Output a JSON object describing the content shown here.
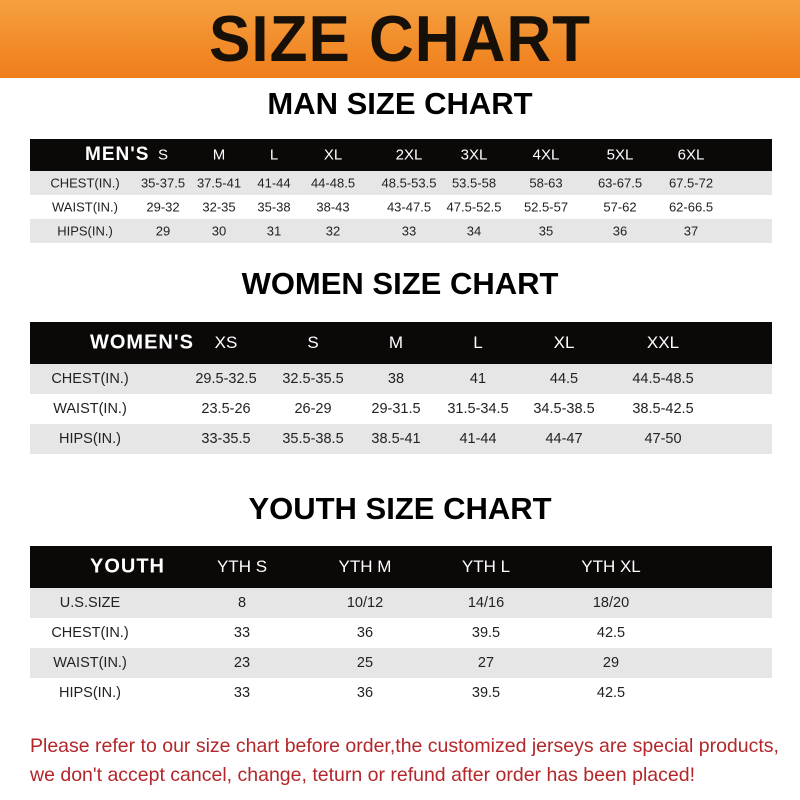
{
  "banner": {
    "title": "SIZE CHART",
    "color": "#ef8a24"
  },
  "men": {
    "title": "MAN SIZE CHART",
    "header": [
      "MEN'S",
      "S",
      "M",
      "L",
      "XL",
      "2XL",
      "3XL",
      "4XL",
      "5XL",
      "6XL"
    ],
    "rows": [
      [
        "CHEST(IN.)",
        "35-37.5",
        "37.5-41",
        "41-44",
        "44-48.5",
        "48.5-53.5",
        "53.5-58",
        "58-63",
        "63-67.5",
        "67.5-72"
      ],
      [
        "WAIST(IN.)",
        "29-32",
        "32-35",
        "35-38",
        "38-43",
        "43-47.5",
        "47.5-52.5",
        "52.5-57",
        "57-62",
        "62-66.5"
      ],
      [
        "HIPS(IN.)",
        "29",
        "30",
        "31",
        "32",
        "33",
        "34",
        "35",
        "36",
        "37"
      ]
    ]
  },
  "women": {
    "title": "WOMEN SIZE CHART",
    "header": [
      "WOMEN'S",
      "XS",
      "S",
      "M",
      "L",
      "XL",
      "XXL"
    ],
    "rows": [
      [
        "CHEST(IN.)",
        "29.5-32.5",
        "32.5-35.5",
        "38",
        "41",
        "44.5",
        "44.5-48.5"
      ],
      [
        "WAIST(IN.)",
        "23.5-26",
        "26-29",
        "29-31.5",
        "31.5-34.5",
        "34.5-38.5",
        "38.5-42.5"
      ],
      [
        "HIPS(IN.)",
        "33-35.5",
        "35.5-38.5",
        "38.5-41",
        "41-44",
        "44-47",
        "47-50"
      ]
    ]
  },
  "youth": {
    "title": "YOUTH SIZE CHART",
    "header": [
      "YOUTH",
      "YTH S",
      "YTH M",
      "YTH L",
      "YTH XL"
    ],
    "rows": [
      [
        "U.S.SIZE",
        "8",
        "10/12",
        "14/16",
        "18/20"
      ],
      [
        "CHEST(IN.)",
        "33",
        "36",
        "39.5",
        "42.5"
      ],
      [
        "WAIST(IN.)",
        "23",
        "25",
        "27",
        "29"
      ],
      [
        "HIPS(IN.)",
        "33",
        "36",
        "39.5",
        "42.5"
      ]
    ]
  },
  "notice": {
    "line1": "Please refer to our size chart before order,the customized jerseys are special products,",
    "line2": "we don't accept cancel, change, teturn or refund after order has been placed!",
    "color": "#b3262a"
  }
}
